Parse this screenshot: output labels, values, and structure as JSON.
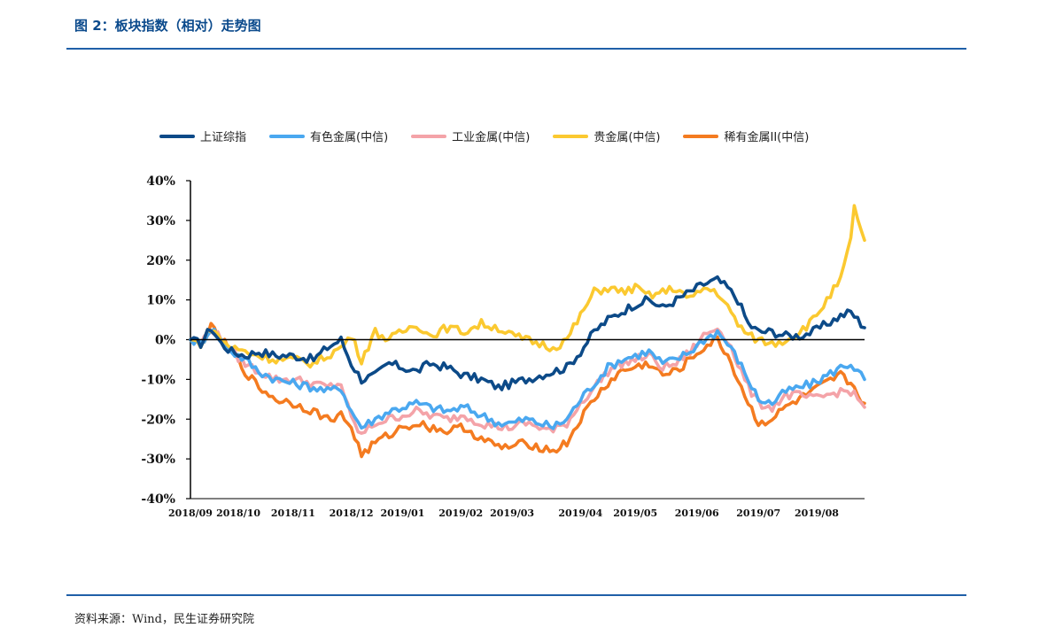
{
  "header": {
    "title": "图 2：板块指数（相对）走势图"
  },
  "footer": {
    "source": "资料来源：Wind，民生证券研究院"
  },
  "colors": {
    "shanghai": "#0c4a88",
    "nonferrous": "#4aa8f0",
    "industrial": "#f4a3a8",
    "precious": "#fbc930",
    "rare": "#f47b20"
  },
  "chart_data": {
    "type": "line",
    "ylim": [
      -40,
      40
    ],
    "yticks": [
      "40%",
      "30%",
      "20%",
      "10%",
      "0%",
      "-10%",
      "-20%",
      "-30%",
      "-40%"
    ],
    "ytick_values": [
      40,
      30,
      20,
      10,
      0,
      -10,
      -20,
      -30,
      -40
    ],
    "xticks": [
      "2018/09",
      "2018/10",
      "2018/11",
      "2018/12",
      "2019/01",
      "2019/02",
      "2019/03",
      "2019/04",
      "2019/05",
      "2019/06",
      "2019/07",
      "2019/08"
    ],
    "xtick_index": [
      0,
      14,
      30,
      47,
      62,
      79,
      94,
      114,
      130,
      148,
      166,
      183
    ],
    "n_points": 198,
    "series": [
      {
        "name": "上证综指",
        "color_key": "shanghai",
        "knots": [
          [
            0,
            0
          ],
          [
            3,
            -1
          ],
          [
            6,
            3
          ],
          [
            9,
            -1
          ],
          [
            12,
            -3
          ],
          [
            16,
            -4
          ],
          [
            20,
            -3
          ],
          [
            25,
            -4
          ],
          [
            30,
            -4
          ],
          [
            36,
            -5
          ],
          [
            40,
            -2
          ],
          [
            44,
            0
          ],
          [
            47,
            -6
          ],
          [
            50,
            -10
          ],
          [
            54,
            -9
          ],
          [
            58,
            -6
          ],
          [
            62,
            -7
          ],
          [
            66,
            -8
          ],
          [
            70,
            -6
          ],
          [
            75,
            -7
          ],
          [
            80,
            -9
          ],
          [
            85,
            -10
          ],
          [
            90,
            -12
          ],
          [
            94,
            -11
          ],
          [
            98,
            -10
          ],
          [
            102,
            -9
          ],
          [
            106,
            -8
          ],
          [
            110,
            -7
          ],
          [
            114,
            -3
          ],
          [
            118,
            2
          ],
          [
            122,
            5
          ],
          [
            126,
            7
          ],
          [
            130,
            9
          ],
          [
            134,
            10
          ],
          [
            138,
            8
          ],
          [
            142,
            10
          ],
          [
            146,
            12
          ],
          [
            150,
            14
          ],
          [
            154,
            15
          ],
          [
            157,
            13
          ],
          [
            160,
            10
          ],
          [
            163,
            4
          ],
          [
            166,
            2
          ],
          [
            170,
            2
          ],
          [
            174,
            1
          ],
          [
            178,
            1
          ],
          [
            182,
            2
          ],
          [
            186,
            4
          ],
          [
            190,
            6
          ],
          [
            193,
            7
          ],
          [
            197,
            3
          ]
        ]
      },
      {
        "name": "有色金属(中信)",
        "color_key": "nonferrous",
        "knots": [
          [
            0,
            0
          ],
          [
            3,
            -1
          ],
          [
            6,
            3
          ],
          [
            9,
            0
          ],
          [
            12,
            -3
          ],
          [
            16,
            -5
          ],
          [
            20,
            -8
          ],
          [
            25,
            -10
          ],
          [
            30,
            -11
          ],
          [
            36,
            -12
          ],
          [
            40,
            -13
          ],
          [
            44,
            -12
          ],
          [
            47,
            -18
          ],
          [
            50,
            -22
          ],
          [
            54,
            -20
          ],
          [
            58,
            -18
          ],
          [
            62,
            -17
          ],
          [
            66,
            -16
          ],
          [
            70,
            -17
          ],
          [
            75,
            -18
          ],
          [
            80,
            -17
          ],
          [
            85,
            -19
          ],
          [
            90,
            -21
          ],
          [
            94,
            -21
          ],
          [
            98,
            -20
          ],
          [
            102,
            -21
          ],
          [
            106,
            -22
          ],
          [
            110,
            -20
          ],
          [
            114,
            -15
          ],
          [
            118,
            -11
          ],
          [
            122,
            -7
          ],
          [
            126,
            -5
          ],
          [
            130,
            -4
          ],
          [
            134,
            -3
          ],
          [
            138,
            -6
          ],
          [
            142,
            -5
          ],
          [
            146,
            -3
          ],
          [
            150,
            0
          ],
          [
            154,
            2
          ],
          [
            157,
            -1
          ],
          [
            160,
            -5
          ],
          [
            163,
            -10
          ],
          [
            166,
            -15
          ],
          [
            170,
            -16
          ],
          [
            174,
            -13
          ],
          [
            178,
            -12
          ],
          [
            182,
            -11
          ],
          [
            186,
            -9
          ],
          [
            190,
            -7
          ],
          [
            193,
            -6
          ],
          [
            197,
            -10
          ]
        ]
      },
      {
        "name": "工业金属(中信)",
        "color_key": "industrial",
        "knots": [
          [
            0,
            0
          ],
          [
            3,
            -1
          ],
          [
            6,
            3
          ],
          [
            9,
            0
          ],
          [
            12,
            -3
          ],
          [
            16,
            -6
          ],
          [
            20,
            -8
          ],
          [
            25,
            -10
          ],
          [
            30,
            -10
          ],
          [
            36,
            -11
          ],
          [
            40,
            -12
          ],
          [
            44,
            -11
          ],
          [
            47,
            -20
          ],
          [
            50,
            -24
          ],
          [
            54,
            -21
          ],
          [
            58,
            -20
          ],
          [
            62,
            -19
          ],
          [
            66,
            -18
          ],
          [
            70,
            -19
          ],
          [
            75,
            -20
          ],
          [
            80,
            -19
          ],
          [
            85,
            -21
          ],
          [
            90,
            -22
          ],
          [
            94,
            -22
          ],
          [
            98,
            -21
          ],
          [
            102,
            -22
          ],
          [
            106,
            -23
          ],
          [
            110,
            -21
          ],
          [
            114,
            -16
          ],
          [
            118,
            -12
          ],
          [
            122,
            -8
          ],
          [
            126,
            -6
          ],
          [
            130,
            -5
          ],
          [
            134,
            -4
          ],
          [
            138,
            -7
          ],
          [
            142,
            -6
          ],
          [
            146,
            -3
          ],
          [
            150,
            1
          ],
          [
            154,
            3
          ],
          [
            157,
            0
          ],
          [
            160,
            -6
          ],
          [
            163,
            -12
          ],
          [
            166,
            -16
          ],
          [
            170,
            -17
          ],
          [
            174,
            -14
          ],
          [
            178,
            -14
          ],
          [
            182,
            -15
          ],
          [
            186,
            -14
          ],
          [
            190,
            -13
          ],
          [
            193,
            -13
          ],
          [
            197,
            -17
          ]
        ]
      },
      {
        "name": "贵金属(中信)",
        "color_key": "precious",
        "knots": [
          [
            0,
            0
          ],
          [
            3,
            -1
          ],
          [
            6,
            3
          ],
          [
            9,
            0
          ],
          [
            12,
            -2
          ],
          [
            16,
            -3
          ],
          [
            20,
            -4
          ],
          [
            25,
            -5
          ],
          [
            30,
            -5
          ],
          [
            36,
            -6
          ],
          [
            40,
            -4
          ],
          [
            44,
            -2
          ],
          [
            47,
            1
          ],
          [
            50,
            -5
          ],
          [
            54,
            2
          ],
          [
            58,
            0
          ],
          [
            62,
            2
          ],
          [
            66,
            4
          ],
          [
            70,
            1
          ],
          [
            75,
            3
          ],
          [
            80,
            2
          ],
          [
            85,
            4
          ],
          [
            90,
            3
          ],
          [
            94,
            1
          ],
          [
            98,
            0
          ],
          [
            102,
            -1
          ],
          [
            106,
            -2
          ],
          [
            110,
            0
          ],
          [
            114,
            6
          ],
          [
            118,
            12
          ],
          [
            122,
            13
          ],
          [
            126,
            12
          ],
          [
            130,
            13
          ],
          [
            134,
            11
          ],
          [
            138,
            12
          ],
          [
            142,
            13
          ],
          [
            146,
            10
          ],
          [
            150,
            13
          ],
          [
            154,
            12
          ],
          [
            157,
            8
          ],
          [
            160,
            4
          ],
          [
            163,
            1
          ],
          [
            166,
            0
          ],
          [
            170,
            -1
          ],
          [
            174,
            0
          ],
          [
            178,
            2
          ],
          [
            182,
            5
          ],
          [
            186,
            10
          ],
          [
            190,
            15
          ],
          [
            193,
            25
          ],
          [
            194,
            33
          ],
          [
            196,
            28
          ],
          [
            197,
            25
          ]
        ]
      },
      {
        "name": "稀有金属II(中信)",
        "color_key": "rare",
        "knots": [
          [
            0,
            0
          ],
          [
            3,
            -1
          ],
          [
            6,
            3
          ],
          [
            9,
            0
          ],
          [
            12,
            -3
          ],
          [
            16,
            -8
          ],
          [
            20,
            -12
          ],
          [
            25,
            -15
          ],
          [
            30,
            -16
          ],
          [
            36,
            -18
          ],
          [
            40,
            -20
          ],
          [
            44,
            -19
          ],
          [
            47,
            -22
          ],
          [
            50,
            -29
          ],
          [
            54,
            -26
          ],
          [
            58,
            -24
          ],
          [
            62,
            -22
          ],
          [
            66,
            -21
          ],
          [
            70,
            -22
          ],
          [
            75,
            -23
          ],
          [
            80,
            -22
          ],
          [
            85,
            -25
          ],
          [
            90,
            -27
          ],
          [
            94,
            -27
          ],
          [
            98,
            -26
          ],
          [
            102,
            -27
          ],
          [
            106,
            -28
          ],
          [
            110,
            -26
          ],
          [
            114,
            -20
          ],
          [
            118,
            -15
          ],
          [
            122,
            -11
          ],
          [
            126,
            -8
          ],
          [
            130,
            -7
          ],
          [
            134,
            -6
          ],
          [
            138,
            -9
          ],
          [
            142,
            -8
          ],
          [
            146,
            -5
          ],
          [
            150,
            -2
          ],
          [
            154,
            0
          ],
          [
            157,
            -4
          ],
          [
            160,
            -10
          ],
          [
            163,
            -16
          ],
          [
            166,
            -21
          ],
          [
            170,
            -20
          ],
          [
            174,
            -17
          ],
          [
            178,
            -15
          ],
          [
            182,
            -13
          ],
          [
            186,
            -11
          ],
          [
            190,
            -9
          ],
          [
            193,
            -11
          ],
          [
            197,
            -16
          ]
        ]
      }
    ]
  }
}
